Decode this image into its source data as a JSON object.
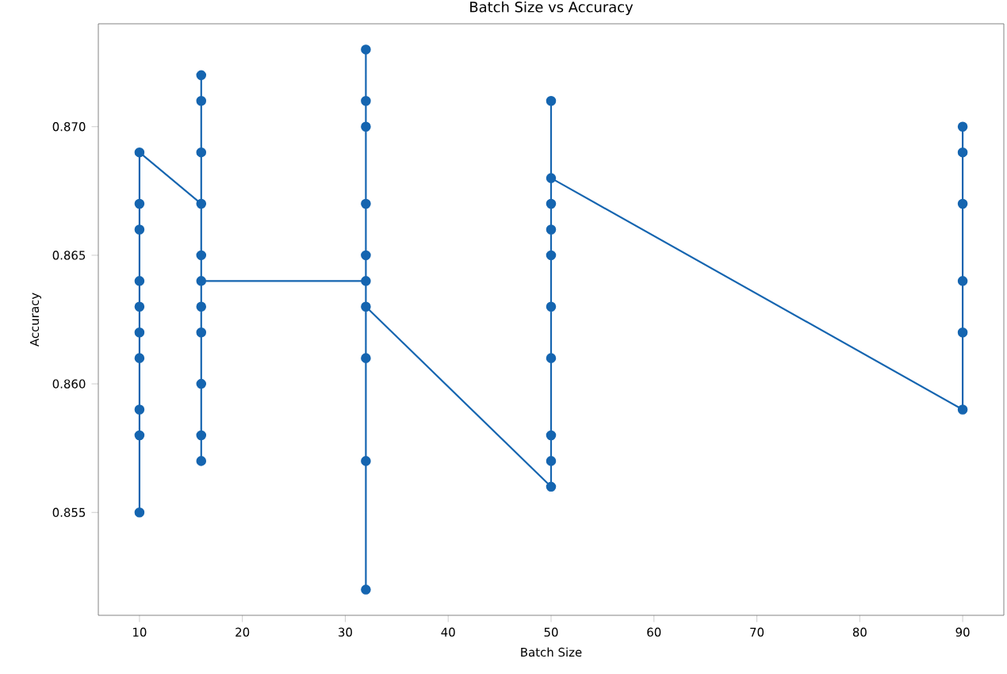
{
  "chart_data": {
    "type": "line",
    "title": "Batch Size vs Accuracy",
    "xlabel": "Batch Size",
    "ylabel": "Accuracy",
    "x": [
      10,
      10,
      10,
      10,
      10,
      10,
      10,
      10,
      10,
      10,
      16,
      16,
      16,
      16,
      16,
      16,
      16,
      16,
      16,
      16,
      16,
      32,
      32,
      32,
      32,
      32,
      32,
      32,
      32,
      32,
      32,
      50,
      50,
      50,
      50,
      50,
      50,
      50,
      50,
      50,
      50,
      90,
      90,
      90,
      90,
      90,
      90
    ],
    "values": [
      0.855,
      0.858,
      0.859,
      0.861,
      0.862,
      0.863,
      0.864,
      0.866,
      0.867,
      0.869,
      0.867,
      0.872,
      0.871,
      0.869,
      0.865,
      0.863,
      0.862,
      0.86,
      0.858,
      0.857,
      0.864,
      0.864,
      0.873,
      0.871,
      0.87,
      0.867,
      0.865,
      0.861,
      0.857,
      0.852,
      0.863,
      0.856,
      0.857,
      0.858,
      0.861,
      0.863,
      0.865,
      0.866,
      0.867,
      0.871,
      0.868,
      0.859,
      0.862,
      0.864,
      0.867,
      0.869,
      0.87
    ],
    "color": "#1565b0",
    "marker": "circle",
    "line_style": "solid",
    "xlim": [
      6,
      94
    ],
    "ylim": [
      0.851,
      0.874
    ],
    "xticks": [
      10,
      20,
      30,
      40,
      50,
      60,
      70,
      80,
      90
    ],
    "yticks": [
      {
        "value": 0.855,
        "label": "0.855"
      },
      {
        "value": 0.86,
        "label": "0.860"
      },
      {
        "value": 0.865,
        "label": "0.865"
      },
      {
        "value": 0.87,
        "label": "0.870"
      }
    ]
  }
}
